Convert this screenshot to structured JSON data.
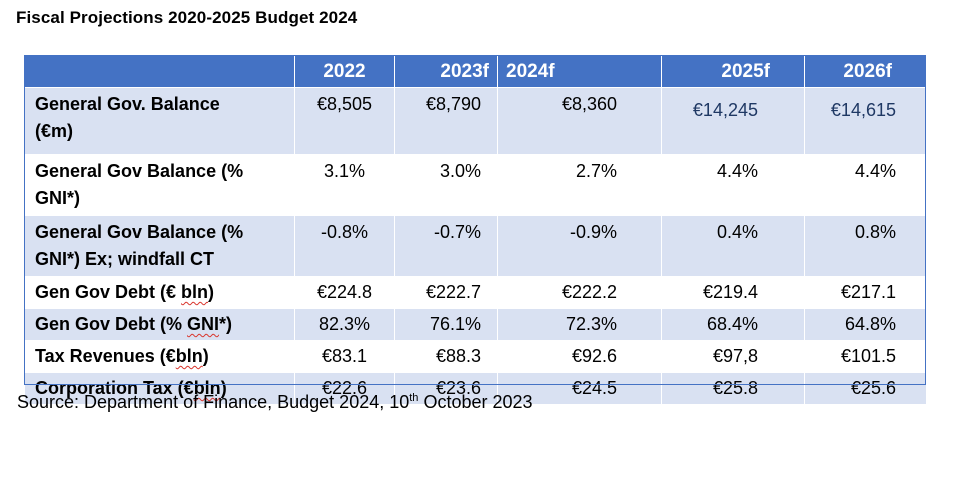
{
  "title": "Fiscal Projections 2020-2025 Budget 2024",
  "table": {
    "headers": [
      "",
      "2022",
      "2023f",
      "2024f",
      "2025f",
      "2026f"
    ],
    "rows": [
      {
        "label_line1": "General Gov. Balance",
        "label_line2": "(€m)",
        "values": [
          "€8,505",
          "€8,790",
          "€8,360",
          "€14,245",
          "€14,615"
        ]
      },
      {
        "label_line1": "General Gov Balance (%",
        "label_line2": "GNI*)",
        "values": [
          "3.1%",
          "3.0%",
          "2.7%",
          "4.4%",
          "4.4%"
        ]
      },
      {
        "label_line1": "General Gov Balance (%",
        "label_line2": "GNI*) Ex; windfall CT",
        "values": [
          "-0.8%",
          "-0.7%",
          "-0.9%",
          "0.4%",
          "0.8%"
        ]
      },
      {
        "label_pre": "Gen Gov Debt (€ ",
        "label_squiggle": "bln",
        "label_post": ")",
        "values": [
          "€224.8",
          "€222.7",
          "€222.2",
          "€219.4",
          "€217.1"
        ]
      },
      {
        "label_pre": "Gen Gov Debt (% ",
        "label_squiggle": "GNI",
        "label_post": "*)",
        "values": [
          "82.3%",
          "76.1%",
          "72.3%",
          "68.4%",
          "64.8%"
        ]
      },
      {
        "label_pre": "Tax Revenues (€",
        "label_squiggle": "bln",
        "label_post": ")",
        "values": [
          "€83.1",
          "€88.3",
          "€92.6",
          "€97,8",
          "€101.5"
        ]
      },
      {
        "label_pre": "Corporation Tax (€",
        "label_squiggle": "bln",
        "label_post": ")",
        "values": [
          "€22.6",
          "€23.6",
          "€24.5",
          "€25.8",
          "€25.6"
        ]
      }
    ]
  },
  "source": {
    "prefix": "Source: Department of Finance, Budget 2024, 10",
    "sup": "th",
    "suffix": " October 2023"
  },
  "colors": {
    "header_bg": "#4472c4",
    "band_bg": "#d9e1f2",
    "projection_text": "#1f3864"
  }
}
